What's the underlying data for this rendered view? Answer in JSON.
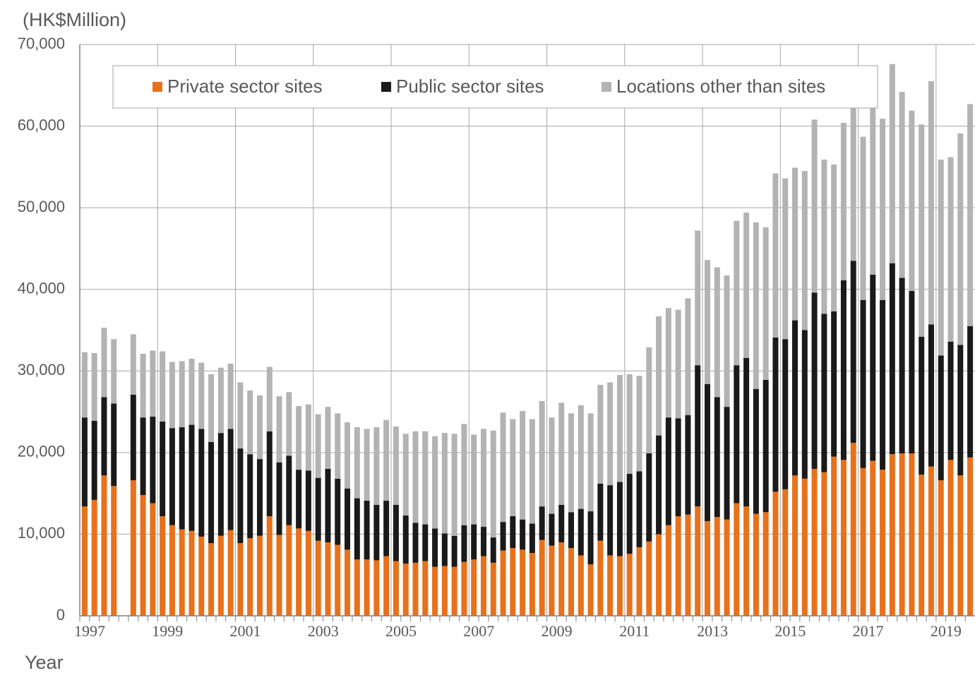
{
  "chart_data": {
    "type": "stacked_bar",
    "y_axis_label": "(HK$Million)",
    "x_axis_label": "Year",
    "categories": [
      "1997",
      null,
      null,
      null,
      null,
      null,
      null,
      null,
      "1999",
      null,
      null,
      null,
      null,
      null,
      null,
      null,
      "2001",
      null,
      null,
      null,
      null,
      null,
      null,
      null,
      "2003",
      null,
      null,
      null,
      null,
      null,
      null,
      null,
      "2005",
      null,
      null,
      null,
      null,
      null,
      null,
      null,
      "2007",
      null,
      null,
      null,
      null,
      null,
      null,
      null,
      "2009",
      null,
      null,
      null,
      null,
      null,
      null,
      null,
      "2011",
      null,
      null,
      null,
      null,
      null,
      null,
      null,
      "2013",
      null,
      null,
      null,
      null,
      null,
      null,
      null,
      "2015",
      null,
      null,
      null,
      null,
      null,
      null,
      null,
      "2017",
      null,
      null,
      null,
      null,
      null,
      null,
      null,
      "2019",
      null,
      null,
      null
    ],
    "series": [
      {
        "name": "Private sector sites",
        "color": "#e8711c",
        "values": [
          13400,
          14200,
          17200,
          15900,
          null,
          16600,
          14800,
          13800,
          12200,
          11100,
          10600,
          10400,
          9700,
          8900,
          9800,
          10500,
          8900,
          9500,
          9800,
          12200,
          9900,
          11100,
          10700,
          10400,
          9200,
          9000,
          8700,
          8100,
          6900,
          6900,
          6800,
          7300,
          6700,
          6400,
          6500,
          6700,
          6000,
          6100,
          6000,
          6600,
          6900,
          7300,
          6500,
          8000,
          8300,
          8100,
          7700,
          9300,
          8600,
          9000,
          8300,
          7400,
          6300,
          9200,
          7400,
          7300,
          7600,
          8400,
          9100,
          10000,
          11100,
          12200,
          12400,
          13400,
          11600,
          12100,
          11800,
          13800,
          13400,
          12500,
          12700,
          15200,
          15500,
          17200,
          16800,
          18000,
          17600,
          19500,
          19100,
          21200,
          18100,
          19000,
          17900,
          19800,
          19900,
          19900,
          17300,
          18300,
          16600,
          19100,
          17200,
          19400
        ]
      },
      {
        "name": "Public sector sites",
        "color": "#1a1a1a",
        "values": [
          10900,
          9700,
          9600,
          10100,
          null,
          10500,
          9500,
          10600,
          11600,
          11900,
          12500,
          13000,
          13200,
          12400,
          12600,
          12400,
          11600,
          10300,
          9400,
          10400,
          8900,
          8500,
          7200,
          7400,
          7700,
          9000,
          8100,
          7500,
          7500,
          7200,
          6800,
          6800,
          6900,
          5900,
          4900,
          4500,
          4700,
          4000,
          3800,
          4500,
          4300,
          3600,
          3100,
          3500,
          3900,
          3700,
          3600,
          4100,
          3900,
          4600,
          4400,
          5700,
          6500,
          7000,
          8600,
          9100,
          9800,
          9300,
          10800,
          12100,
          13200,
          12000,
          12200,
          17300,
          16800,
          14700,
          13800,
          16900,
          18200,
          15300,
          16200,
          18900,
          18400,
          19000,
          18200,
          21600,
          19400,
          17800,
          22000,
          22300,
          20600,
          22800,
          20800,
          23400,
          21500,
          19900,
          16900,
          17400,
          15300,
          14500,
          16000,
          16100
        ]
      },
      {
        "name": "Locations other than sites",
        "color": "#b3b3b3",
        "values": [
          8000,
          8300,
          8500,
          7900,
          null,
          7400,
          7800,
          8100,
          8600,
          8100,
          8100,
          8100,
          8100,
          8300,
          8000,
          8000,
          8100,
          7800,
          7800,
          7900,
          8100,
          7800,
          7800,
          8100,
          7800,
          7600,
          8000,
          8100,
          8700,
          8800,
          9500,
          9900,
          9600,
          10000,
          11200,
          11400,
          11300,
          12300,
          12500,
          12400,
          11000,
          12000,
          13100,
          13400,
          11900,
          13300,
          12800,
          12900,
          11800,
          12500,
          12100,
          12700,
          12000,
          12100,
          12600,
          13100,
          12200,
          11700,
          13000,
          14600,
          13400,
          13300,
          14300,
          16500,
          15200,
          15900,
          16100,
          17700,
          17800,
          20400,
          18700,
          20100,
          19700,
          18700,
          19500,
          21200,
          18900,
          18000,
          19300,
          19000,
          20000,
          20500,
          22200,
          24400,
          22800,
          22100,
          26000,
          29800,
          24000,
          22600,
          25900,
          27200
        ]
      }
    ],
    "ylim": [
      0,
      70000
    ],
    "yticks": [
      0,
      {
        "value": 10000,
        "label": "10,000"
      },
      {
        "value": 20000,
        "label": "20,000"
      },
      {
        "value": 30000,
        "label": "30,000"
      },
      {
        "value": 40000,
        "label": "40,000"
      },
      {
        "value": 50000,
        "label": "50,000"
      },
      {
        "value": 60000,
        "label": "60,000"
      },
      {
        "value": 70000,
        "label": "70,000"
      }
    ],
    "grid": true
  }
}
